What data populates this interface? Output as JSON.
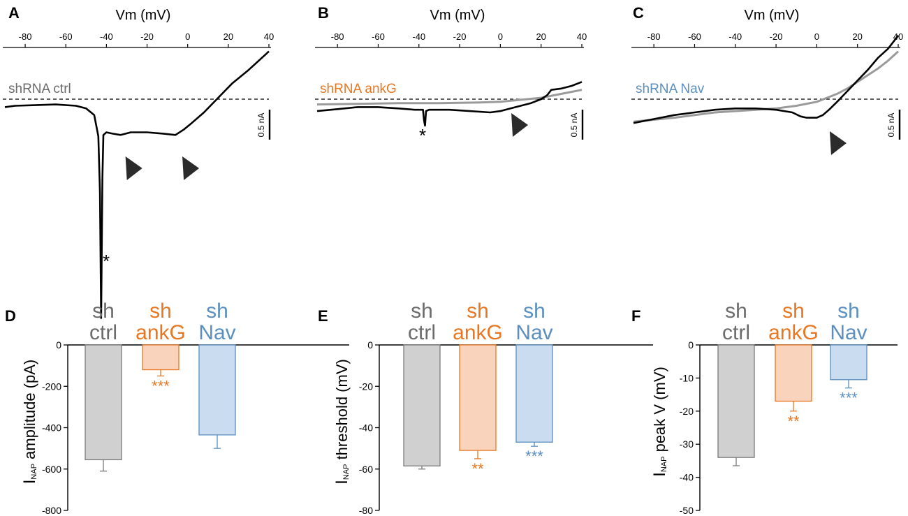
{
  "colors": {
    "black": "#000000",
    "gray_trace": "#9a9a9a",
    "label_gray": "#6b6b6b",
    "orange": "#e87722",
    "blue": "#5b8fc0",
    "bar_gray_fill": "#d0d0d0",
    "bar_gray_stroke": "#7a7a7a",
    "bar_orange_fill": "#f9d3bb",
    "bar_blue_fill": "#c9dcf0",
    "arrowhead": "#2b2b2b"
  },
  "chart_data": [
    {
      "panel": "A",
      "type": "line",
      "xlabel": "Vm (mV)",
      "xlim": [
        -90,
        40
      ],
      "xticks": [
        -80,
        -60,
        -40,
        -20,
        0,
        20,
        40
      ],
      "legend": "shRNA ctrl",
      "legend_color": "#6b6b6b",
      "scale_bar": "0.5 nA",
      "ylim_nA": [
        -1.6,
        0.3
      ],
      "zero_current": 0,
      "series": [
        {
          "name": "shRNA ctrl",
          "color": "#000000",
          "x": [
            -90,
            -85,
            -75,
            -65,
            -55,
            -50,
            -46,
            -44,
            -43.2,
            -42.6,
            -42,
            -41.5,
            -40,
            -37,
            -33,
            -28,
            -20,
            -12,
            -6,
            -2,
            2,
            8,
            15,
            22,
            30,
            40
          ],
          "y": [
            -0.06,
            -0.05,
            -0.045,
            -0.04,
            -0.05,
            -0.07,
            -0.12,
            -0.28,
            -0.7,
            -1.65,
            -0.6,
            -0.27,
            -0.25,
            -0.26,
            -0.27,
            -0.25,
            -0.25,
            -0.26,
            -0.27,
            -0.23,
            -0.18,
            -0.1,
            0.01,
            0.12,
            0.22,
            0.36
          ]
        }
      ],
      "annotations": {
        "asterisk": "*",
        "arrowheads_at_mV": [
          -32,
          -4
        ]
      }
    },
    {
      "panel": "B",
      "type": "line",
      "xlabel": "Vm (mV)",
      "xlim": [
        -90,
        40
      ],
      "xticks": [
        -80,
        -60,
        -40,
        -20,
        0,
        20,
        40
      ],
      "legend": "shRNA ankG",
      "legend_color": "#e87722",
      "scale_bar": "0.5 nA",
      "ylim_nA": [
        -1.6,
        0.3
      ],
      "zero_current": 0,
      "series": [
        {
          "name": "shRNA ankG",
          "color": "#000000",
          "x": [
            -90,
            -80,
            -70,
            -60,
            -50,
            -42,
            -38,
            -37.5,
            -37,
            -36.5,
            -35,
            -25,
            -15,
            -5,
            0,
            5,
            10,
            15,
            20,
            23,
            25,
            30,
            35,
            40
          ],
          "y": [
            -0.09,
            -0.075,
            -0.06,
            -0.06,
            -0.07,
            -0.08,
            -0.08,
            -0.16,
            -0.2,
            -0.09,
            -0.08,
            -0.08,
            -0.09,
            -0.1,
            -0.09,
            -0.07,
            -0.05,
            -0.03,
            0.0,
            0.03,
            0.07,
            0.08,
            0.1,
            0.13
          ]
        },
        {
          "name": "shRNA ankG (gray)",
          "color": "#9a9a9a",
          "x": [
            -90,
            -70,
            -50,
            -30,
            -10,
            0,
            10,
            20,
            30,
            40
          ],
          "y": [
            -0.04,
            -0.035,
            -0.03,
            -0.03,
            -0.025,
            -0.02,
            -0.005,
            0.01,
            0.04,
            0.07
          ]
        }
      ],
      "annotations": {
        "asterisk": "*",
        "arrowheads_at_mV": [
          4
        ]
      }
    },
    {
      "panel": "C",
      "type": "line",
      "xlabel": "Vm (mV)",
      "xlim": [
        -90,
        40
      ],
      "xticks": [
        -80,
        -60,
        -40,
        -20,
        0,
        20,
        40
      ],
      "legend": "shRNA Nav",
      "legend_color": "#5b8fc0",
      "scale_bar": "0.5 nA",
      "ylim_nA": [
        -1.6,
        0.3
      ],
      "zero_current": 0,
      "series": [
        {
          "name": "shRNA Nav",
          "color": "#000000",
          "x": [
            -90,
            -80,
            -70,
            -60,
            -50,
            -40,
            -30,
            -20,
            -12,
            -8,
            -5,
            -2,
            0,
            3,
            6,
            10,
            15,
            20,
            25,
            30,
            35,
            38,
            40
          ],
          "y": [
            -0.18,
            -0.15,
            -0.12,
            -0.1,
            -0.08,
            -0.07,
            -0.07,
            -0.08,
            -0.1,
            -0.13,
            -0.14,
            -0.14,
            -0.14,
            -0.12,
            -0.08,
            -0.02,
            0.06,
            0.14,
            0.22,
            0.31,
            0.38,
            0.44,
            0.48
          ]
        },
        {
          "name": "shRNA Nav (gray)",
          "color": "#9a9a9a",
          "x": [
            -90,
            -70,
            -50,
            -30,
            -20,
            -10,
            0,
            5,
            10,
            15,
            20,
            25,
            30,
            35,
            40
          ],
          "y": [
            -0.17,
            -0.14,
            -0.1,
            -0.08,
            -0.07,
            -0.05,
            -0.02,
            0.01,
            0.04,
            0.08,
            0.13,
            0.18,
            0.23,
            0.29,
            0.36
          ]
        }
      ],
      "annotations": {
        "arrowheads_at_mV": [
          5
        ]
      }
    },
    {
      "panel": "D",
      "type": "bar",
      "ylabel": {
        "main": "I",
        "sub": "NAP",
        "rest": " amplitude (pA)"
      },
      "ylim": [
        -800,
        0
      ],
      "yticks": [
        0,
        -200,
        -400,
        -600,
        -800
      ],
      "categories": [
        [
          "sh",
          "ctrl"
        ],
        [
          "sh",
          "ankG"
        ],
        [
          "sh",
          "Nav"
        ]
      ],
      "category_colors": [
        "#6b6b6b",
        "#e87722",
        "#5b8fc0"
      ],
      "values": [
        -555,
        -120,
        -435
      ],
      "errors": [
        55,
        30,
        65
      ],
      "significance": [
        "",
        "***",
        ""
      ]
    },
    {
      "panel": "E",
      "type": "bar",
      "ylabel": {
        "main": "I",
        "sub": "NAP",
        "rest": " threshold (mV)"
      },
      "ylim": [
        -80,
        0
      ],
      "yticks": [
        0,
        -20,
        -40,
        -60,
        -80
      ],
      "categories": [
        [
          "sh",
          "ctrl"
        ],
        [
          "sh",
          "ankG"
        ],
        [
          "sh",
          "Nav"
        ]
      ],
      "category_colors": [
        "#6b6b6b",
        "#e87722",
        "#5b8fc0"
      ],
      "values": [
        -58.5,
        -51,
        -47
      ],
      "errors": [
        1.5,
        4,
        2
      ],
      "significance": [
        "",
        "**",
        "***"
      ]
    },
    {
      "panel": "F",
      "type": "bar",
      "ylabel": {
        "main": "I",
        "sub": "NAP",
        "rest": " peak V (mV)"
      },
      "ylim": [
        -50,
        0
      ],
      "yticks": [
        0,
        -10,
        -20,
        -30,
        -40,
        -50
      ],
      "categories": [
        [
          "sh",
          "ctrl"
        ],
        [
          "sh",
          "ankG"
        ],
        [
          "sh",
          "Nav"
        ]
      ],
      "category_colors": [
        "#6b6b6b",
        "#e87722",
        "#5b8fc0"
      ],
      "values": [
        -34,
        -17,
        -10.5
      ],
      "errors": [
        2.5,
        3,
        2.5
      ],
      "significance": [
        "",
        "**",
        "***"
      ]
    }
  ]
}
